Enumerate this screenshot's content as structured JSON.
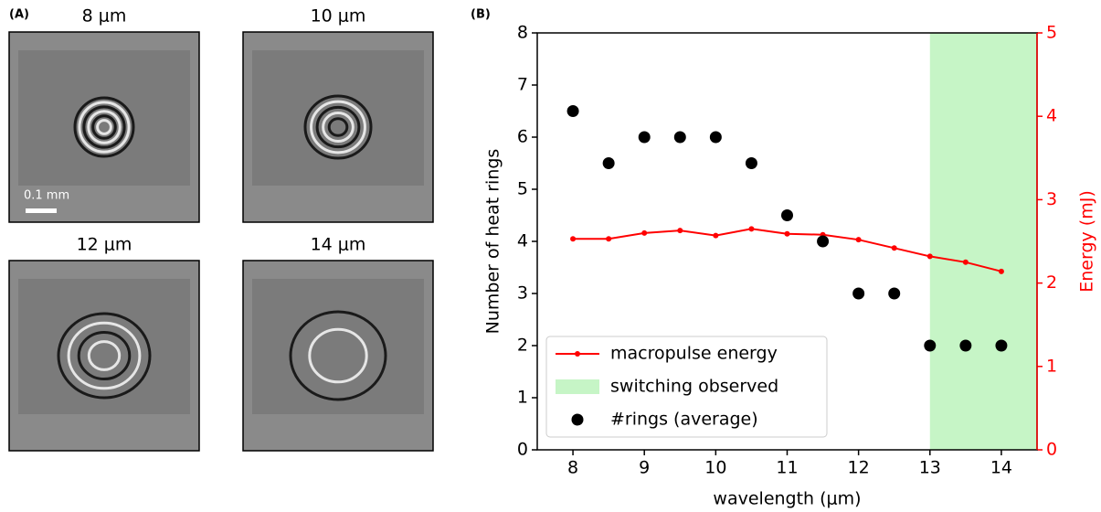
{
  "panel_a": {
    "label": "(A)",
    "scale_bar": "0.1 mm",
    "images": [
      {
        "title": "8 μm"
      },
      {
        "title": "10 μm"
      },
      {
        "title": "12 μm"
      },
      {
        "title": "14 μm"
      }
    ]
  },
  "chart_data": {
    "type": "scatter",
    "label": "(B)",
    "xlabel": "wavelength (μm)",
    "ylabel": "Number of heat rings",
    "y2label": "Energy (mJ)",
    "x": [
      8,
      8.5,
      9,
      9.5,
      10,
      10.5,
      11,
      11.5,
      12,
      12.5,
      13,
      13.5,
      14
    ],
    "xlim": [
      7.5,
      14.5
    ],
    "xticks": [
      8,
      9,
      10,
      11,
      12,
      13,
      14
    ],
    "ylim": [
      0,
      8
    ],
    "yticks": [
      0,
      1,
      2,
      3,
      4,
      5,
      6,
      7,
      8
    ],
    "y2lim": [
      0,
      5
    ],
    "y2ticks": [
      0,
      1,
      2,
      3,
      4,
      5
    ],
    "y2color": "#ff0000",
    "series": [
      {
        "name": "macropulse energy",
        "color": "#ff0000",
        "kind": "line",
        "axis": "y2",
        "values": [
          2.53,
          2.53,
          2.6,
          2.63,
          2.57,
          2.65,
          2.59,
          2.58,
          2.52,
          2.42,
          2.32,
          2.25,
          2.14
        ]
      },
      {
        "name": "#rings (average)",
        "color": "#000000",
        "kind": "points",
        "values": [
          6.5,
          5.5,
          6,
          6,
          6,
          5.5,
          4.5,
          4,
          3,
          3,
          2,
          2,
          2
        ]
      }
    ],
    "spans": [
      {
        "name": "switching observed",
        "color": "#c6f5c6",
        "x": [
          13,
          14.5
        ]
      }
    ],
    "legend": "lower left"
  }
}
